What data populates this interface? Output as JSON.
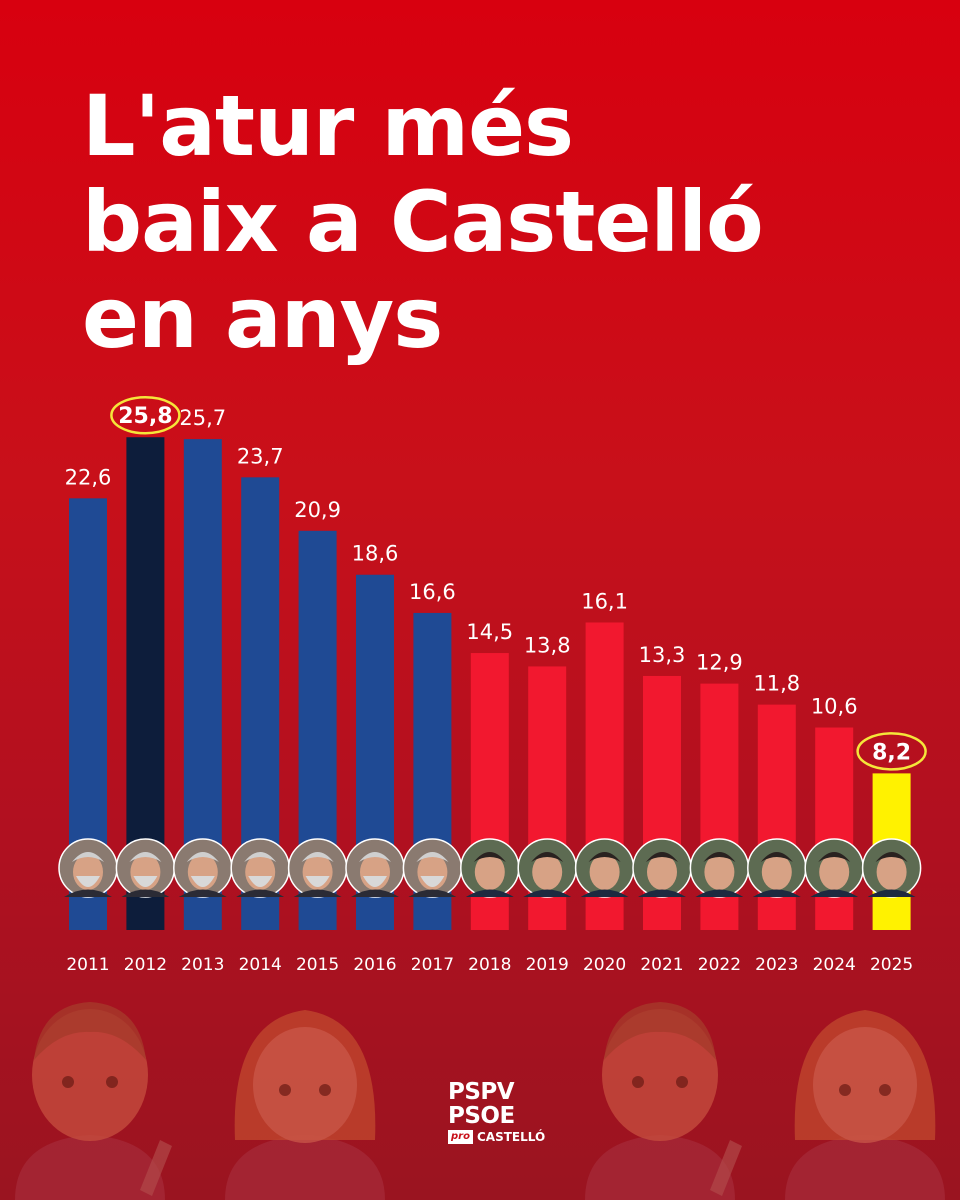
{
  "title": {
    "line1": "L'atur més",
    "line2": "baix a Castelló",
    "line3": "en anys"
  },
  "chart_data": {
    "type": "bar",
    "title": "L'atur més baix a Castelló en anys",
    "xlabel": "",
    "ylabel": "",
    "ylim": [
      0,
      27
    ],
    "categories": [
      "2011",
      "2012",
      "2013",
      "2014",
      "2015",
      "2016",
      "2017",
      "2018",
      "2019",
      "2020",
      "2021",
      "2022",
      "2023",
      "2024",
      "2025"
    ],
    "values": [
      22.6,
      25.8,
      25.7,
      23.7,
      20.9,
      18.6,
      16.6,
      14.5,
      13.8,
      16.1,
      13.3,
      12.9,
      11.8,
      10.6,
      8.2
    ],
    "labels": [
      "22,6",
      "25,8",
      "25,7",
      "23,7",
      "20,9",
      "18,6",
      "16,6",
      "14,5",
      "13,8",
      "16,1",
      "13,3",
      "12,9",
      "11,8",
      "10,6",
      "8,2"
    ],
    "highlighted": [
      "2012",
      "2025"
    ],
    "colors": {
      "blue": "#1f4a94",
      "dark": "#0d1d3b",
      "red": "#f2182f",
      "yellow": "#fff200",
      "circle": "#f5e63a"
    },
    "bar_colors": [
      "#1f4a94",
      "#0d1d3b",
      "#1f4a94",
      "#1f4a94",
      "#1f4a94",
      "#1f4a94",
      "#1f4a94",
      "#f2182f",
      "#f2182f",
      "#f2182f",
      "#f2182f",
      "#f2182f",
      "#f2182f",
      "#f2182f",
      "#fff200"
    ],
    "avatar_set": [
      "man-gray-beard-icon",
      "man-gray-beard-icon",
      "man-gray-beard-icon",
      "man-gray-beard-icon",
      "man-gray-beard-icon",
      "man-gray-beard-icon",
      "man-gray-beard-icon",
      "man-dark-hair-icon",
      "man-dark-hair-icon",
      "man-dark-hair-icon",
      "man-dark-hair-icon",
      "man-dark-hair-icon",
      "man-dark-hair-icon",
      "man-dark-hair-icon",
      "man-dark-hair-icon"
    ]
  },
  "logo": {
    "line1": "PSPV",
    "line2": "PSOE",
    "pro": "pro",
    "city": "CASTELLÓ"
  },
  "decorations": [
    "man-mechanic-icon",
    "woman-mechanic-icon",
    "man-mechanic-icon",
    "woman-mechanic-icon"
  ]
}
